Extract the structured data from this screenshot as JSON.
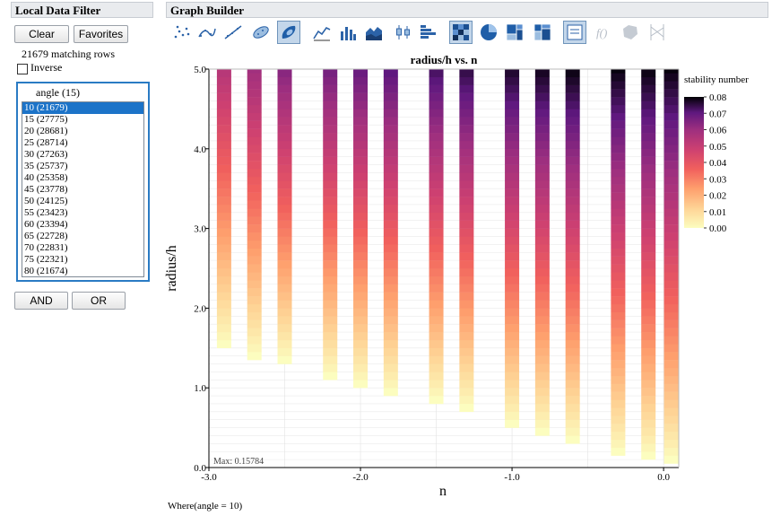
{
  "local_filter": {
    "title": "Local Data Filter",
    "clear_label": "Clear",
    "favorites_label": "Favorites",
    "matching_rows": "21679 matching rows",
    "inverse_label": "Inverse",
    "list_title": "angle (15)",
    "items": [
      {
        "label": "10 (21679)",
        "selected": true
      },
      {
        "label": "15 (27775)"
      },
      {
        "label": "20 (28681)"
      },
      {
        "label": "25 (28714)"
      },
      {
        "label": "30 (27263)"
      },
      {
        "label": "35 (25737)"
      },
      {
        "label": "40 (25358)"
      },
      {
        "label": "45 (23778)"
      },
      {
        "label": "50 (24125)"
      },
      {
        "label": "55 (23423)"
      },
      {
        "label": "60 (23394)"
      },
      {
        "label": "65 (22728)"
      },
      {
        "label": "70 (22831)"
      },
      {
        "label": "75 (22321)"
      },
      {
        "label": "80 (21674)"
      }
    ],
    "and_label": "AND",
    "or_label": "OR"
  },
  "graph_builder": {
    "title": "Graph Builder",
    "toolbar": [
      "points-icon",
      "smoother-icon",
      "line-of-fit-icon",
      "ellipse-icon",
      "contour-icon",
      "line-icon",
      "bar-icon",
      "area-icon",
      "box-plot-icon",
      "histogram-icon",
      "heatmap-icon",
      "pie-icon",
      "treemap-icon",
      "mosaic-icon",
      "caption-box-icon",
      "formula-icon",
      "map-shapes-icon",
      "parallel-icon"
    ],
    "where": "Where(angle = 10)",
    "max_note": "Max: 0.15784"
  },
  "chart_data": {
    "type": "heatmap",
    "title": "radius/h vs. n",
    "xlabel": "n",
    "ylabel": "radius/h",
    "xlim": [
      -3.0,
      0.1
    ],
    "ylim": [
      0.0,
      5.0
    ],
    "x_ticks": [
      "-3.0",
      "-2.0",
      "-1.0",
      "0.0"
    ],
    "y_ticks": [
      "0.0",
      "1.0",
      "2.0",
      "3.0",
      "4.0",
      "5.0"
    ],
    "grid": true,
    "x": [
      -2.9,
      -2.7,
      -2.5,
      -2.2,
      -2.0,
      -1.8,
      -1.5,
      -1.3,
      -1.0,
      -0.8,
      -0.6,
      -0.3,
      -0.1,
      0.05
    ],
    "min_radius": [
      1.5,
      1.35,
      1.3,
      1.1,
      1.0,
      0.9,
      0.8,
      0.7,
      0.5,
      0.4,
      0.3,
      0.15,
      0.1,
      0.05
    ],
    "max_value_at_top": [
      0.055,
      0.06,
      0.065,
      0.068,
      0.07,
      0.072,
      0.074,
      0.076,
      0.078,
      0.079,
      0.08,
      0.08,
      0.08,
      0.08
    ],
    "legend": {
      "title": "stability number",
      "ticks": [
        "0.08",
        "0.07",
        "0.06",
        "0.05",
        "0.04",
        "0.03",
        "0.02",
        "0.01",
        "0.00"
      ],
      "range": [
        0.0,
        0.08
      ],
      "placement": "right"
    }
  }
}
